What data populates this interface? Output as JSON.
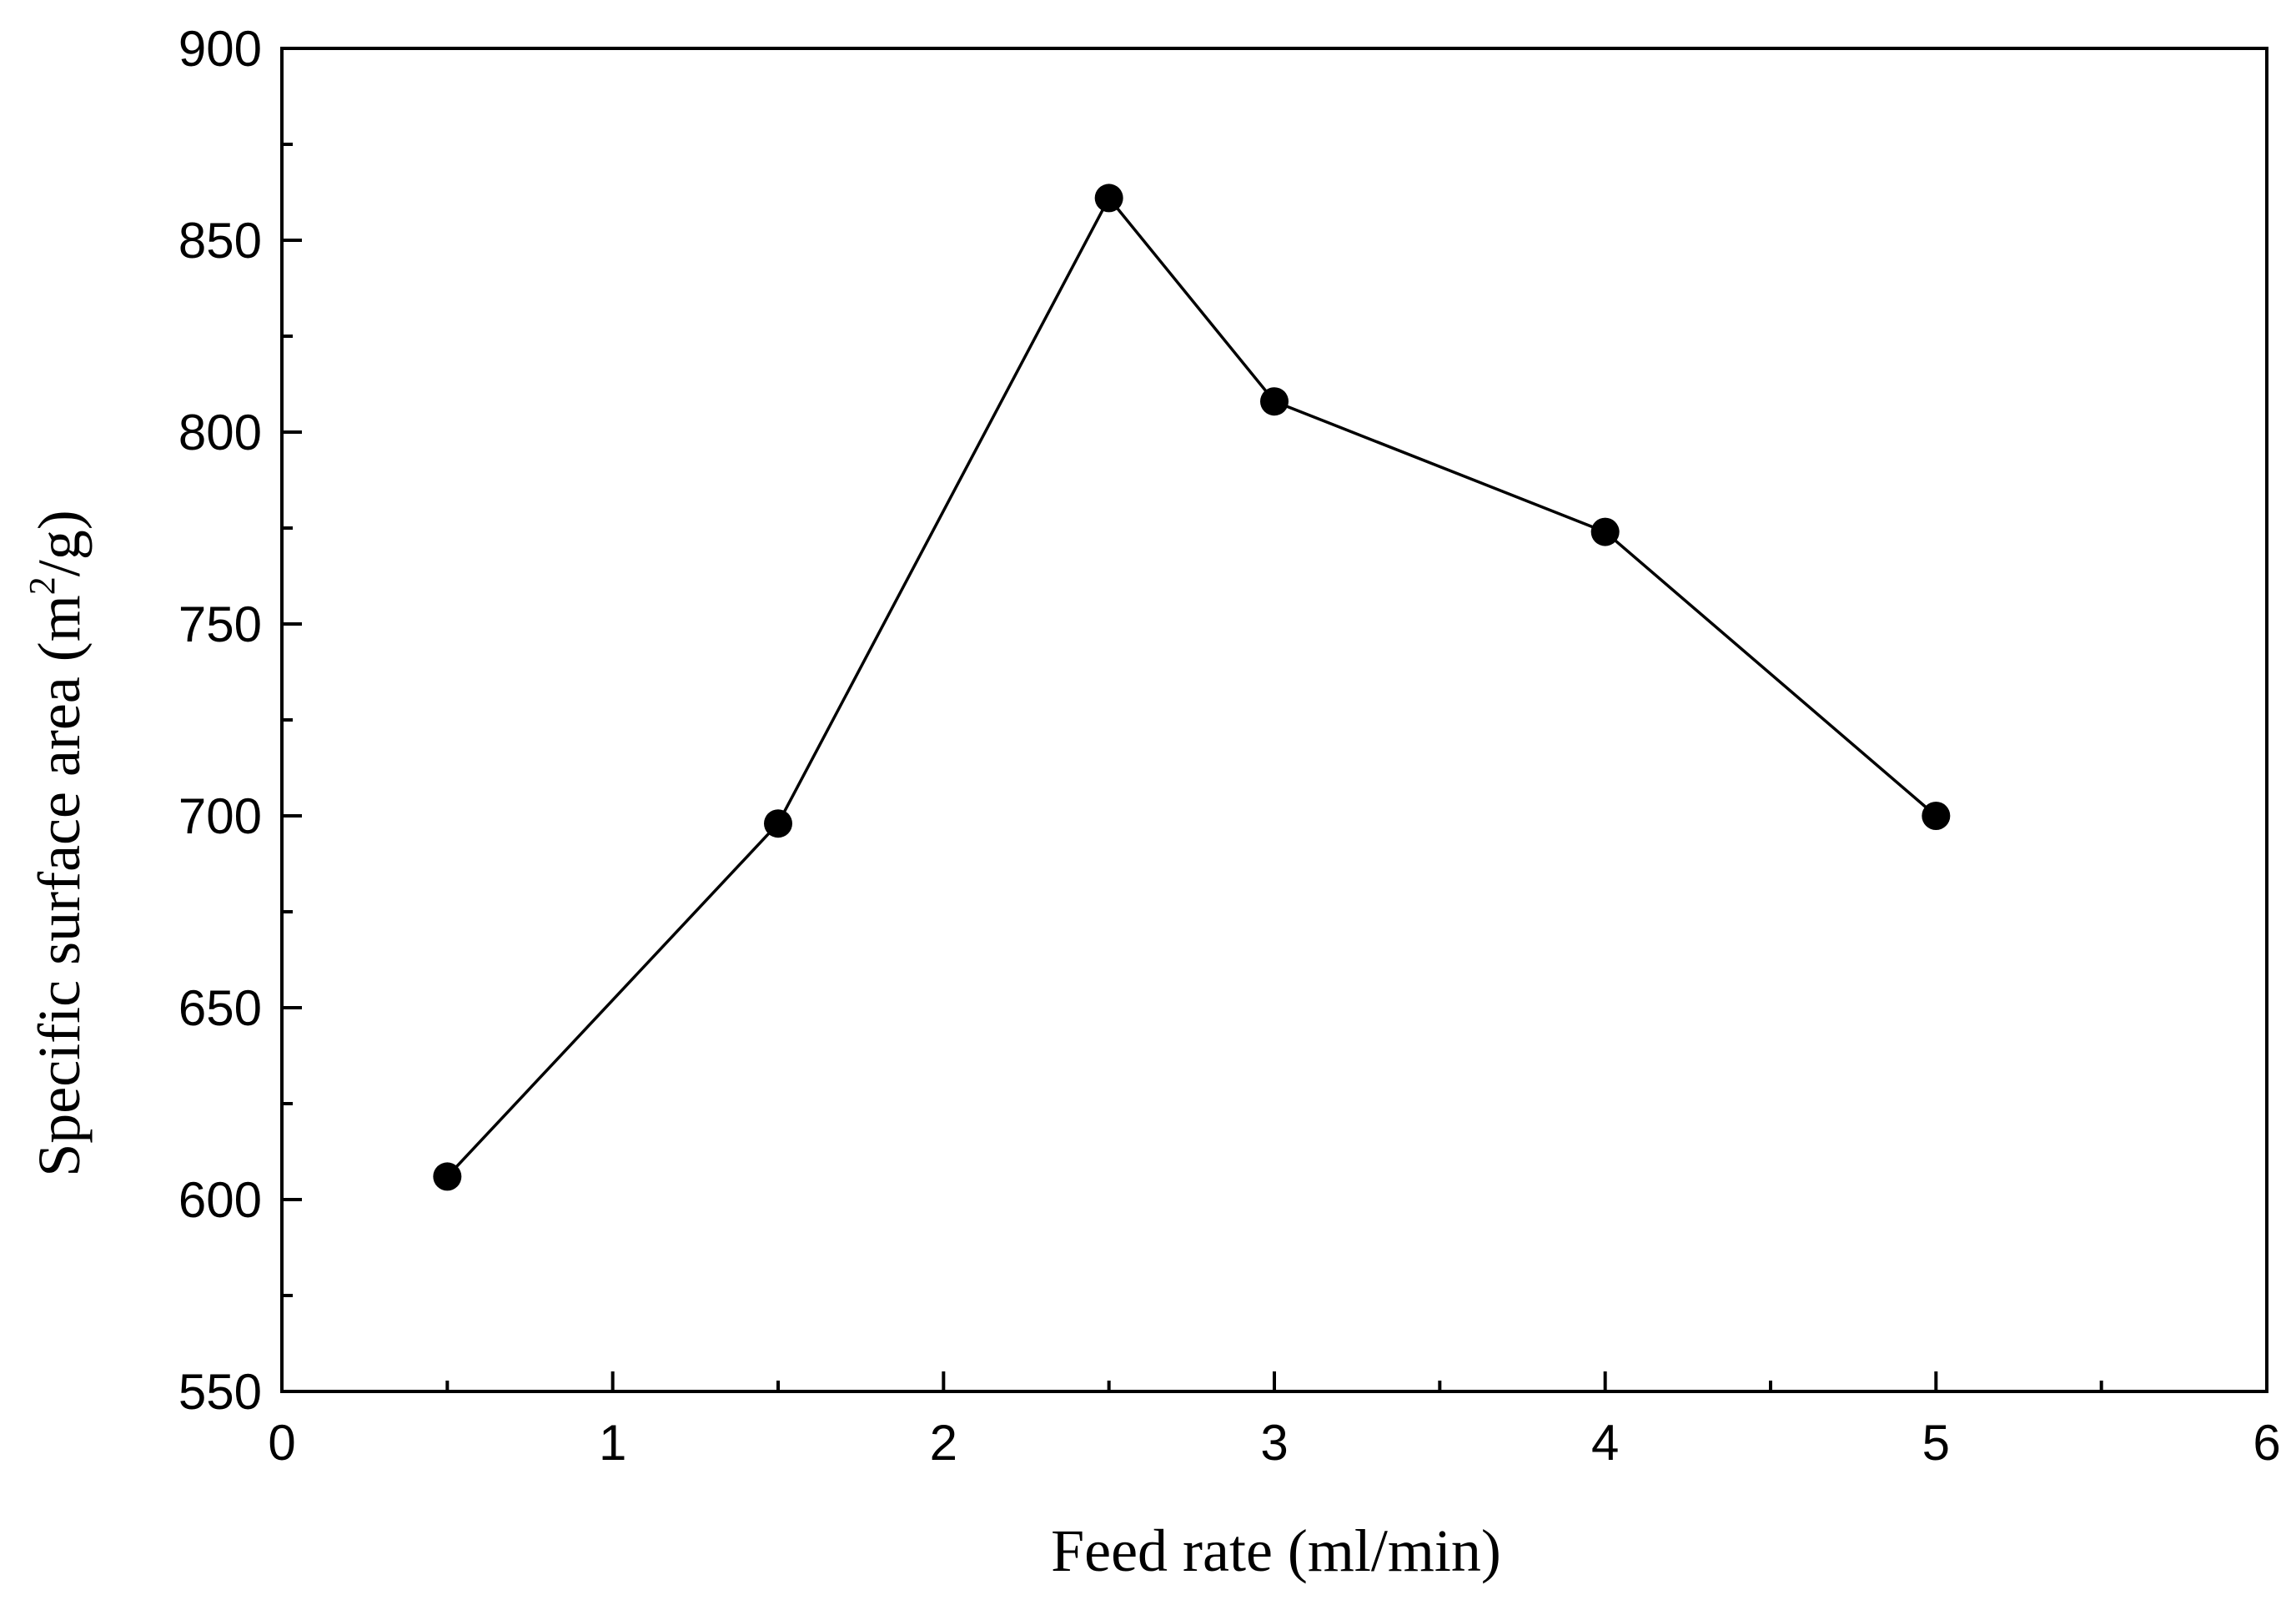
{
  "chart_data": {
    "type": "line",
    "title": "",
    "xlabel": "Feed rate (ml/min)",
    "ylabel_prefix": "Specific surface area (m",
    "ylabel_sup": "2",
    "ylabel_suffix": "/g)",
    "xlim": [
      0,
      6
    ],
    "ylim": [
      550,
      900
    ],
    "xticks": [
      0,
      1,
      2,
      3,
      4,
      5,
      6
    ],
    "yticks": [
      550,
      600,
      650,
      700,
      750,
      800,
      850,
      900
    ],
    "x_minor_step": 0.5,
    "y_minor_step": 25,
    "grid": false,
    "legend": null,
    "series": [
      {
        "name": "Specific surface area",
        "color": "#000000",
        "marker": "circle",
        "x": [
          0.5,
          1.5,
          2.5,
          3.0,
          4.0,
          5.0
        ],
        "y": [
          606,
          698,
          861,
          808,
          774,
          700
        ]
      }
    ]
  }
}
